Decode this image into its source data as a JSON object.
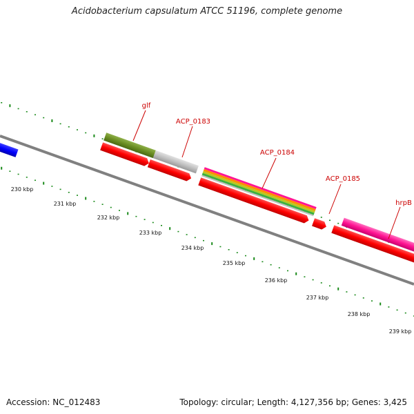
{
  "title": "Acidobacterium capsulatum ATCC 51196, complete genome",
  "footer": {
    "accession": "Accession: NC_012483",
    "summary": "Topology: circular; Length: 4,127,356 bp; Genes: 3,425"
  },
  "ticks": [
    "230 kbp",
    "231 kbp",
    "232 kbp",
    "233 kbp",
    "234 kbp",
    "235 kbp",
    "236 kbp",
    "237 kbp",
    "238 kbp",
    "239 kbp"
  ],
  "gene_labels": [
    "glf",
    "ACP_0183",
    "ACP_0184",
    "ACP_0185",
    "hrpB"
  ],
  "colors": {
    "cds_forward": "#ff0000",
    "cds_blue": "#0000ff",
    "olive": "#6b8e23",
    "grey": "#c0c0c0",
    "magenta": "#ff1493",
    "backbone": "#808080",
    "tick": "#1a8a1a"
  }
}
